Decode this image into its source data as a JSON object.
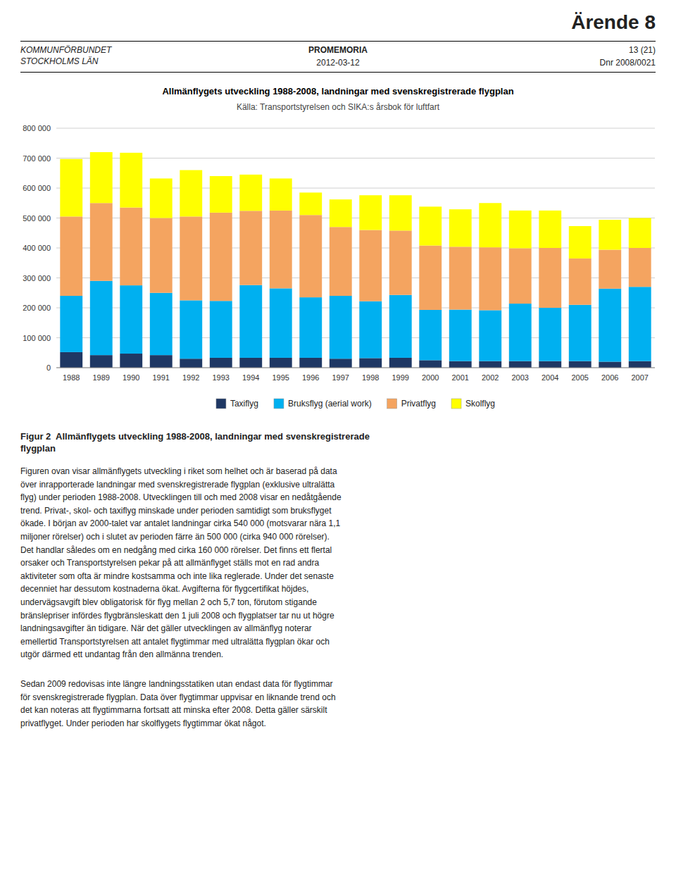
{
  "chart_data": {
    "type": "bar",
    "stacked": true,
    "title": "Allmänflygets utveckling 1988-2008, landningar med svenskregistrerade flygplan",
    "subtitle": "Källa: Transportstyrelsen  och SIKA:s årsbok för luftfart",
    "categories": [
      "1988",
      "1989",
      "1990",
      "1991",
      "1992",
      "1993",
      "1994",
      "1995",
      "1996",
      "1997",
      "1998",
      "1999",
      "2000",
      "2001",
      "2002",
      "2003",
      "2004",
      "2005",
      "2006",
      "2007"
    ],
    "series": [
      {
        "name": "Taxiflyg",
        "color": "#1F3864",
        "values": [
          52000,
          42000,
          47000,
          42000,
          30000,
          33000,
          33000,
          33000,
          33000,
          30000,
          32000,
          33000,
          25000,
          22000,
          22000,
          22000,
          22000,
          22000,
          20000,
          22000
        ]
      },
      {
        "name": "Bruksflyg (aerial work)",
        "color": "#00B0F0",
        "values": [
          188000,
          248000,
          228000,
          208000,
          195000,
          190000,
          243000,
          232000,
          202000,
          210000,
          190000,
          210000,
          168000,
          172000,
          170000,
          192000,
          178000,
          188000,
          244000,
          248000
        ]
      },
      {
        "name": "Privatflyg",
        "color": "#F4A460",
        "values": [
          265000,
          260000,
          260000,
          250000,
          280000,
          295000,
          248000,
          260000,
          275000,
          230000,
          238000,
          215000,
          215000,
          210000,
          210000,
          185000,
          200000,
          155000,
          130000,
          130000
        ]
      },
      {
        "name": "Skolflyg",
        "color": "#FFFF00",
        "values": [
          192000,
          170000,
          183000,
          132000,
          155000,
          122000,
          121000,
          107000,
          75000,
          92000,
          116000,
          118000,
          130000,
          125000,
          148000,
          126000,
          125000,
          108000,
          100000,
          100000
        ]
      }
    ],
    "ylim": [
      0,
      800000
    ],
    "yticks": [
      0,
      {
        "value": 100000,
        "label": "100 000"
      },
      {
        "value": 200000,
        "label": "200 000"
      },
      {
        "value": 300000,
        "label": "300 000"
      },
      {
        "value": 400000,
        "label": "400 000"
      },
      {
        "value": 500000,
        "label": "500 000"
      },
      {
        "value": 600000,
        "label": "600 000"
      },
      {
        "value": 700000,
        "label": "700 000"
      },
      {
        "value": 800000,
        "label": "800 000"
      }
    ],
    "grid": true,
    "legend": "bottom"
  },
  "page": {
    "header_right1": "Ärende 8",
    "header_left1": "KOMMUNFÖRBUNDET",
    "header_left2": "STOCKHOLMS LÄN",
    "header_center": "PROMEMORIA",
    "header_right2": "13 (21)",
    "header_date": "2012-03-12",
    "header_dnr": "Dnr 2008/0021",
    "fig2_caption_bold": "Figur 2  Allmänflygets utveckling 1988-2008, landningar med svenskregistrerade",
    "fig2_caption_bold2": "flygplan",
    "body_paragraph1": "Figuren ovan visar allmänflygets utveckling i riket som helhet och är baserad på data\növer inrapporterade landningar med svenskregistrerade flygplan (exklusive ultralätta\nflyg) under perioden 1988-2008. Utvecklingen till och med 2008 visar en nedåtgående\ntrend. Privat-, skol- och taxiflyg minskade under perioden samtidigt som bruksflyget\nökade. I början av 2000-talet var antalet landningar cirka 540 000 (motsvarar nära 1,1\nmiljoner rörelser) och i slutet av perioden färre än 500 000 (cirka 940 000 rörelser).\nDet handlar således om en nedgång med cirka 160 000 rörelser. Det finns ett flertal\norsaker och Transportstyrelsen pekar på att allmänflyget ställs mot en rad andra\naktiviteter som ofta är mindre kostsamma och inte lika reglerade. Under det senaste\ndecenniet har dessutom kostnaderna ökat. Avgifterna för flygcertifikat höjdes,\nundervägsavgift blev obligatorisk för flyg mellan 2 och 5,7 ton, förutom stigande\nbränslepriser infördes flygbränsleskatt den 1 juli 2008 och flygplatser tar nu ut högre\nlandningsavgifter än tidigare. När det gäller utvecklingen av allmänflyg noterar\nemellertid Transportstyrelsen att antalet flygtimmar med ultralätta flygplan ökar och\nutgör därmed ett undantag från den allmänna trenden.",
    "body_paragraph2": "Sedan 2009 redovisas inte längre landningsstatiken utan endast data för flygtimmar\nför svenskregistrerade flygplan. Data över flygtimmar uppvisar en liknande trend och\ndet kan noteras att flygtimmarna fortsatt att minska efter 2008. Detta gäller särskilt\nprivatflyget. Under perioden har skolflygets flygtimmar ökat något."
  }
}
